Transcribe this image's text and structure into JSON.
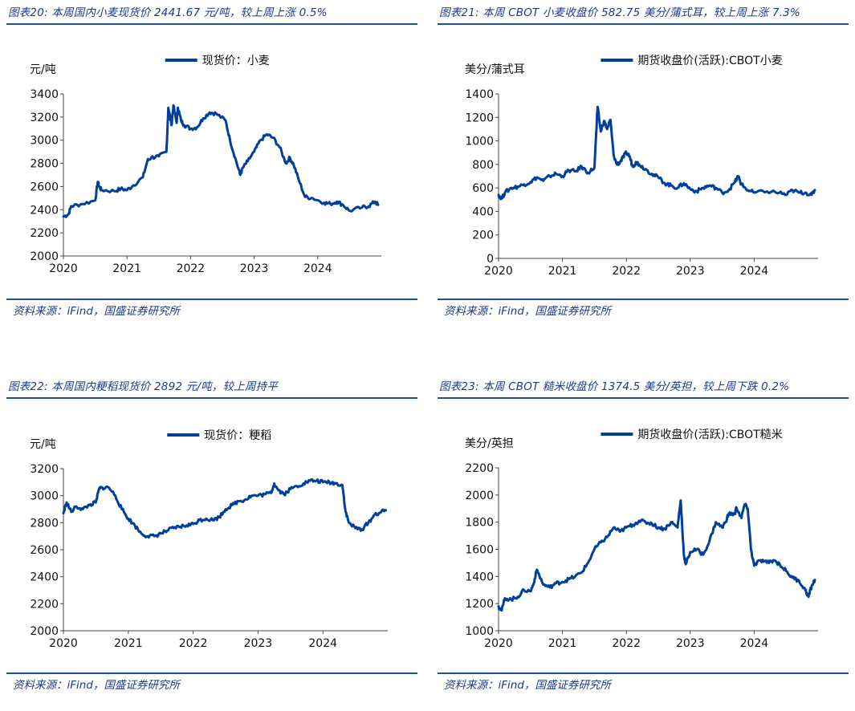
{
  "line_color": "#003f9a",
  "title_color": "#1b3a8a",
  "panels": [
    {
      "title": "图表20:  本周国内小麦现货价 2441.67 元/吨，较上周上涨 0.5%",
      "source": "资料来源：iFind，国盛证券研究所"
    },
    {
      "title": "图表21:  本周 CBOT 小麦收盘价 582.75 美分/蒲式耳，较上周上涨 7.3%",
      "source": "资料来源：iFind，国盛证券研究所"
    },
    {
      "title": "图表22:  本周国内粳稻现货价 2892 元/吨，较上周持平",
      "source": "资料来源：iFind，国盛证券研究所"
    },
    {
      "title": "图表23:  本周 CBOT 糙米收盘价 1374.5 美分/英担，较上周下跌 0.2%",
      "source": "资料来源：iFind，国盛证券研究所"
    }
  ],
  "chart_data": [
    {
      "type": "line",
      "title": "本周国内小麦现货价 2441.67 元/吨，较上周上涨 0.5%",
      "ylabel": "元/吨",
      "legend": "现货价：小麦",
      "ylim": [
        2000,
        3400
      ],
      "yticks": [
        2000,
        2200,
        2400,
        2600,
        2800,
        3000,
        3200,
        3400
      ],
      "xlim": [
        2020,
        2025
      ],
      "xticks": [
        "2020",
        "2021",
        "2022",
        "2023",
        "2024"
      ],
      "series": [
        {
          "name": "现货价：小麦",
          "x": [
            2020.0,
            2020.08,
            2020.12,
            2020.3,
            2020.5,
            2020.54,
            2020.57,
            2020.6,
            2020.8,
            2020.9,
            2021.0,
            2021.1,
            2021.25,
            2021.32,
            2021.38,
            2021.5,
            2021.62,
            2021.65,
            2021.7,
            2021.73,
            2021.78,
            2021.8,
            2021.85,
            2021.9,
            2022.0,
            2022.1,
            2022.2,
            2022.3,
            2022.4,
            2022.55,
            2022.62,
            2022.7,
            2022.78,
            2022.82,
            2022.9,
            2023.0,
            2023.1,
            2023.2,
            2023.3,
            2023.4,
            2023.5,
            2023.56,
            2023.62,
            2023.7,
            2023.8,
            2023.92,
            2024.1,
            2024.2,
            2024.3,
            2024.4,
            2024.5,
            2024.7,
            2024.8,
            2024.9,
            2024.95
          ],
          "values": [
            2340,
            2360,
            2430,
            2450,
            2480,
            2640,
            2590,
            2570,
            2560,
            2580,
            2570,
            2610,
            2680,
            2820,
            2850,
            2860,
            2900,
            3280,
            3130,
            3300,
            3150,
            3280,
            3170,
            3130,
            3100,
            3110,
            3190,
            3240,
            3230,
            3170,
            3000,
            2850,
            2700,
            2760,
            2820,
            2900,
            3000,
            3050,
            3020,
            2940,
            2800,
            2850,
            2790,
            2660,
            2510,
            2500,
            2460,
            2450,
            2470,
            2440,
            2390,
            2420,
            2430,
            2470,
            2441.67
          ]
        }
      ]
    },
    {
      "type": "line",
      "title": "本周 CBOT 小麦收盘价 582.75 美分/蒲式耳，较上周上涨 7.3%",
      "ylabel": "美分/蒲式耳",
      "legend": "期货收盘价(活跃):CBOT小麦",
      "ylim": [
        0,
        1400
      ],
      "yticks": [
        0,
        200,
        400,
        600,
        800,
        1000,
        1200,
        1400
      ],
      "xlim": [
        2020,
        2025
      ],
      "xticks": [
        "2020",
        "2021",
        "2022",
        "2023",
        "2024"
      ],
      "series": [
        {
          "name": "期货收盘价(活跃):CBOT小麦",
          "x": [
            2020.0,
            2020.05,
            2020.1,
            2020.2,
            2020.3,
            2020.4,
            2020.5,
            2020.6,
            2020.7,
            2020.8,
            2020.9,
            2021.0,
            2021.1,
            2021.2,
            2021.3,
            2021.4,
            2021.5,
            2021.55,
            2021.6,
            2021.65,
            2021.7,
            2021.75,
            2021.8,
            2021.85,
            2021.9,
            2021.95,
            2022.0,
            2022.05,
            2022.1,
            2022.15,
            2022.2,
            2022.3,
            2022.4,
            2022.5,
            2022.6,
            2022.7,
            2022.8,
            2022.9,
            2023.0,
            2023.1,
            2023.2,
            2023.3,
            2023.4,
            2023.5,
            2023.6,
            2023.7,
            2023.75,
            2023.8,
            2023.9,
            2024.0,
            2024.2,
            2024.4,
            2024.5,
            2024.6,
            2024.7,
            2024.8,
            2024.9,
            2024.95
          ],
          "values": [
            540,
            510,
            560,
            600,
            610,
            630,
            650,
            690,
            660,
            700,
            720,
            700,
            750,
            740,
            780,
            730,
            770,
            1290,
            1080,
            1170,
            1100,
            1180,
            880,
            800,
            820,
            860,
            900,
            870,
            780,
            820,
            800,
            760,
            720,
            690,
            640,
            620,
            600,
            640,
            590,
            570,
            600,
            620,
            600,
            560,
            580,
            650,
            700,
            630,
            580,
            560,
            570,
            560,
            540,
            580,
            560,
            560,
            540,
            582.75
          ]
        }
      ]
    },
    {
      "type": "line",
      "title": "本周国内粳稻现货价 2892 元/吨，较上周持平",
      "ylabel": "元/吨",
      "legend": "现货价：粳稻",
      "ylim": [
        2000,
        3200
      ],
      "yticks": [
        2000,
        2200,
        2400,
        2600,
        2800,
        3000,
        3200
      ],
      "xlim": [
        2020,
        2025
      ],
      "xticks": [
        "2020",
        "2021",
        "2022",
        "2023",
        "2024"
      ],
      "series": [
        {
          "name": "现货价：粳稻",
          "x": [
            2020.0,
            2020.05,
            2020.12,
            2020.2,
            2020.3,
            2020.4,
            2020.5,
            2020.55,
            2020.6,
            2020.7,
            2020.8,
            2020.9,
            2021.0,
            2021.1,
            2021.2,
            2021.3,
            2021.4,
            2021.5,
            2021.6,
            2021.7,
            2021.8,
            2021.9,
            2022.0,
            2022.1,
            2022.2,
            2022.3,
            2022.4,
            2022.5,
            2022.6,
            2022.7,
            2022.8,
            2022.9,
            2023.0,
            2023.1,
            2023.2,
            2023.25,
            2023.3,
            2023.4,
            2023.5,
            2023.6,
            2023.7,
            2023.8,
            2023.9,
            2024.0,
            2024.1,
            2024.2,
            2024.3,
            2024.35,
            2024.4,
            2024.5,
            2024.6,
            2024.7,
            2024.8,
            2024.9,
            2024.97
          ],
          "values": [
            2870,
            2950,
            2880,
            2920,
            2900,
            2930,
            2950,
            3050,
            3060,
            3060,
            3000,
            2900,
            2830,
            2780,
            2720,
            2700,
            2700,
            2720,
            2740,
            2760,
            2770,
            2780,
            2790,
            2820,
            2830,
            2820,
            2840,
            2900,
            2930,
            2960,
            2970,
            3000,
            3000,
            3010,
            3020,
            3090,
            3050,
            3010,
            3050,
            3070,
            3090,
            3110,
            3110,
            3100,
            3100,
            3090,
            3080,
            2880,
            2800,
            2760,
            2750,
            2800,
            2860,
            2880,
            2892
          ]
        }
      ]
    },
    {
      "type": "line",
      "title": "本周 CBOT 糙米收盘价 1374.5 美分/英担，较上周下跌 0.2%",
      "ylabel": "美分/英担",
      "legend": "期货收盘价(活跃):CBOT糙米",
      "ylim": [
        1000,
        2200
      ],
      "yticks": [
        1000,
        1200,
        1400,
        1600,
        1800,
        2000,
        2200
      ],
      "xlim": [
        2020,
        2025
      ],
      "xticks": [
        "2020",
        "2021",
        "2022",
        "2023",
        "2024"
      ],
      "series": [
        {
          "name": "期货收盘价(活跃):CBOT糙米",
          "x": [
            2020.0,
            2020.05,
            2020.1,
            2020.2,
            2020.3,
            2020.4,
            2020.5,
            2020.55,
            2020.6,
            2020.7,
            2020.8,
            2020.9,
            2021.0,
            2021.1,
            2021.2,
            2021.3,
            2021.4,
            2021.5,
            2021.6,
            2021.7,
            2021.8,
            2021.9,
            2022.0,
            2022.1,
            2022.2,
            2022.3,
            2022.4,
            2022.5,
            2022.6,
            2022.7,
            2022.8,
            2022.85,
            2022.9,
            2022.93,
            2023.0,
            2023.1,
            2023.2,
            2023.3,
            2023.4,
            2023.5,
            2023.55,
            2023.6,
            2023.7,
            2023.72,
            2023.8,
            2023.85,
            2023.9,
            2023.95,
            2024.0,
            2024.1,
            2024.2,
            2024.3,
            2024.4,
            2024.5,
            2024.6,
            2024.7,
            2024.8,
            2024.85,
            2024.9,
            2024.95
          ],
          "values": [
            1180,
            1150,
            1240,
            1230,
            1250,
            1300,
            1290,
            1350,
            1450,
            1340,
            1320,
            1350,
            1360,
            1380,
            1400,
            1430,
            1500,
            1600,
            1650,
            1690,
            1760,
            1730,
            1760,
            1780,
            1810,
            1800,
            1790,
            1760,
            1750,
            1800,
            1760,
            1960,
            1560,
            1490,
            1580,
            1600,
            1560,
            1660,
            1800,
            1760,
            1800,
            1860,
            1860,
            1910,
            1830,
            1930,
            1900,
            1600,
            1480,
            1520,
            1500,
            1520,
            1490,
            1440,
            1390,
            1370,
            1300,
            1250,
            1330,
            1374.5
          ]
        }
      ]
    }
  ]
}
